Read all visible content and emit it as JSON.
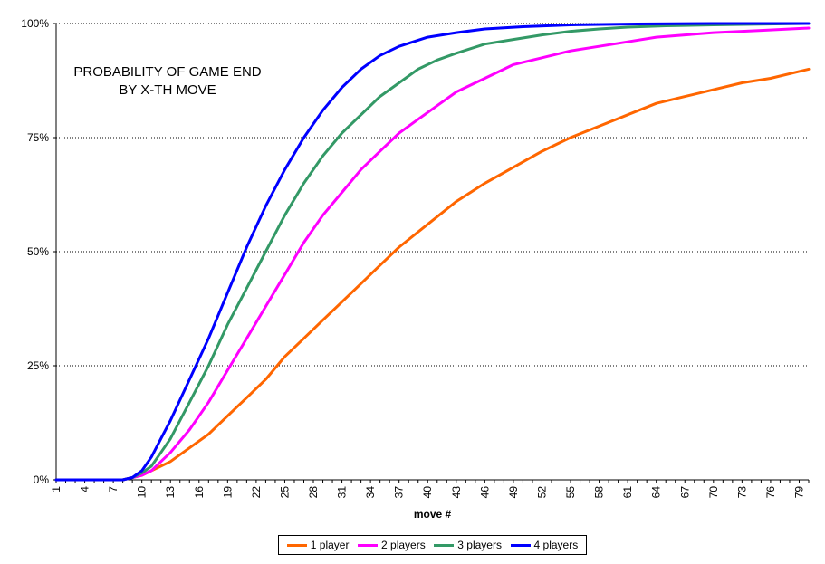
{
  "chart_data": {
    "type": "line",
    "title_lines": [
      "PROBABILITY OF GAME END",
      "BY X-TH MOVE"
    ],
    "xlabel": "move #",
    "ylabel": "",
    "x_range": [
      1,
      80
    ],
    "x_ticks": [
      1,
      4,
      7,
      10,
      13,
      16,
      19,
      22,
      25,
      28,
      31,
      34,
      37,
      40,
      43,
      46,
      49,
      52,
      55,
      58,
      61,
      64,
      67,
      70,
      73,
      76,
      79
    ],
    "ylim": [
      0,
      100
    ],
    "y_ticks": [
      0,
      25,
      50,
      75,
      100
    ],
    "y_tick_labels": [
      "0%",
      "25%",
      "50%",
      "75%",
      "100%"
    ],
    "grid": "horizontal dotted",
    "legend_position": "bottom",
    "series": [
      {
        "name": "1 player",
        "color": "#ff6600",
        "points": [
          [
            1,
            0
          ],
          [
            8,
            0
          ],
          [
            9,
            0.5
          ],
          [
            10,
            1
          ],
          [
            11,
            2
          ],
          [
            12,
            3
          ],
          [
            13,
            4
          ],
          [
            15,
            7
          ],
          [
            17,
            10
          ],
          [
            19,
            14
          ],
          [
            21,
            18
          ],
          [
            23,
            22
          ],
          [
            25,
            27
          ],
          [
            27,
            31
          ],
          [
            29,
            35
          ],
          [
            31,
            39
          ],
          [
            33,
            43
          ],
          [
            35,
            47
          ],
          [
            37,
            51
          ],
          [
            40,
            56
          ],
          [
            43,
            61
          ],
          [
            46,
            65
          ],
          [
            49,
            68.5
          ],
          [
            52,
            72
          ],
          [
            55,
            75
          ],
          [
            58,
            77.5
          ],
          [
            61,
            80
          ],
          [
            64,
            82.5
          ],
          [
            67,
            84
          ],
          [
            70,
            85.5
          ],
          [
            73,
            87
          ],
          [
            76,
            88
          ],
          [
            80,
            90
          ]
        ]
      },
      {
        "name": "2 players",
        "color": "#ff00ff",
        "points": [
          [
            1,
            0
          ],
          [
            8,
            0
          ],
          [
            9,
            0.5
          ],
          [
            10,
            1
          ],
          [
            11,
            2
          ],
          [
            12,
            4
          ],
          [
            13,
            6
          ],
          [
            15,
            11
          ],
          [
            17,
            17
          ],
          [
            19,
            24
          ],
          [
            21,
            31
          ],
          [
            23,
            38
          ],
          [
            25,
            45
          ],
          [
            27,
            52
          ],
          [
            29,
            58
          ],
          [
            31,
            63
          ],
          [
            33,
            68
          ],
          [
            35,
            72
          ],
          [
            37,
            76
          ],
          [
            39,
            79
          ],
          [
            41,
            82
          ],
          [
            43,
            85
          ],
          [
            46,
            88
          ],
          [
            49,
            91
          ],
          [
            52,
            92.5
          ],
          [
            55,
            94
          ],
          [
            58,
            95
          ],
          [
            61,
            96
          ],
          [
            64,
            97
          ],
          [
            67,
            97.5
          ],
          [
            70,
            98
          ],
          [
            75,
            98.5
          ],
          [
            80,
            99
          ]
        ]
      },
      {
        "name": "3 players",
        "color": "#339966",
        "points": [
          [
            1,
            0
          ],
          [
            8,
            0
          ],
          [
            9,
            0.5
          ],
          [
            10,
            1.5
          ],
          [
            11,
            3
          ],
          [
            12,
            6
          ],
          [
            13,
            9
          ],
          [
            15,
            17
          ],
          [
            17,
            25
          ],
          [
            19,
            34
          ],
          [
            21,
            42
          ],
          [
            23,
            50
          ],
          [
            25,
            58
          ],
          [
            27,
            65
          ],
          [
            29,
            71
          ],
          [
            31,
            76
          ],
          [
            33,
            80
          ],
          [
            35,
            84
          ],
          [
            37,
            87
          ],
          [
            39,
            90
          ],
          [
            41,
            92
          ],
          [
            43,
            93.5
          ],
          [
            46,
            95.5
          ],
          [
            49,
            96.5
          ],
          [
            52,
            97.5
          ],
          [
            55,
            98.3
          ],
          [
            58,
            98.8
          ],
          [
            61,
            99.2
          ],
          [
            65,
            99.5
          ],
          [
            70,
            99.7
          ],
          [
            80,
            100
          ]
        ]
      },
      {
        "name": "4 players",
        "color": "#0000ff",
        "points": [
          [
            1,
            0
          ],
          [
            8,
            0
          ],
          [
            9,
            0.5
          ],
          [
            10,
            2
          ],
          [
            11,
            5
          ],
          [
            12,
            9
          ],
          [
            13,
            13
          ],
          [
            15,
            22
          ],
          [
            17,
            31
          ],
          [
            19,
            41
          ],
          [
            21,
            51
          ],
          [
            23,
            60
          ],
          [
            25,
            68
          ],
          [
            27,
            75
          ],
          [
            29,
            81
          ],
          [
            31,
            86
          ],
          [
            33,
            90
          ],
          [
            35,
            93
          ],
          [
            37,
            95
          ],
          [
            40,
            97
          ],
          [
            43,
            98
          ],
          [
            46,
            98.8
          ],
          [
            50,
            99.3
          ],
          [
            55,
            99.7
          ],
          [
            62,
            99.9
          ],
          [
            70,
            100
          ],
          [
            80,
            100
          ]
        ]
      }
    ]
  }
}
